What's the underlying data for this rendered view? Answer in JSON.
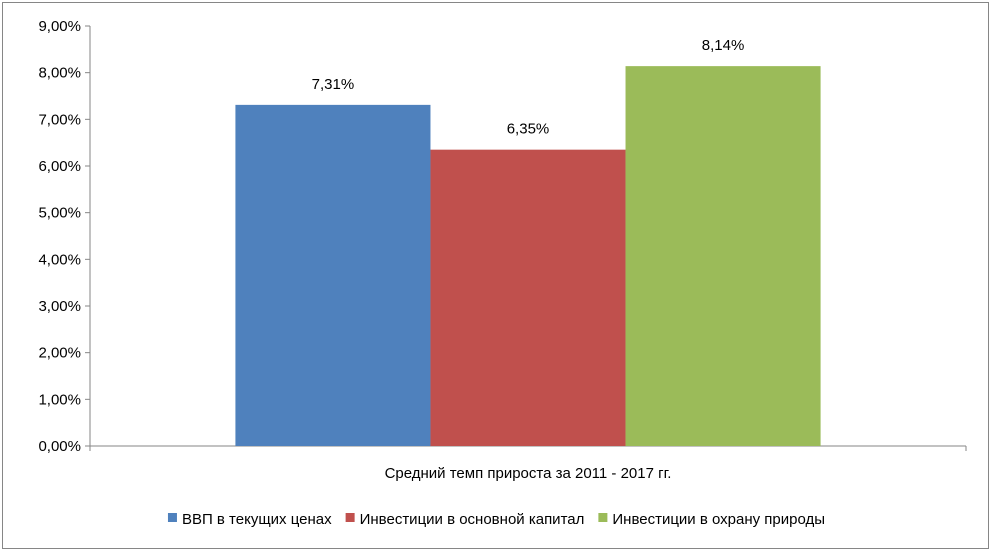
{
  "chart_data": {
    "type": "bar",
    "categories": [
      "Средний темп прироста за 2011 - 2017 гг."
    ],
    "series": [
      {
        "name": "ВВП в текущих ценах",
        "values": [
          7.31
        ],
        "label": "7,31%",
        "color": "#4F81BD"
      },
      {
        "name": "Инвестиции в основной капитал",
        "values": [
          6.35
        ],
        "label": "6,35%",
        "color": "#C0504D"
      },
      {
        "name": "Инвестиции в охрану природы",
        "values": [
          8.14
        ],
        "label": "8,14%",
        "color": "#9BBB59"
      }
    ],
    "ylim": [
      0,
      9
    ],
    "yticks": [
      {
        "value": 0,
        "label": "0,00%"
      },
      {
        "value": 1,
        "label": "1,00%"
      },
      {
        "value": 2,
        "label": "2,00%"
      },
      {
        "value": 3,
        "label": "3,00%"
      },
      {
        "value": 4,
        "label": "4,00%"
      },
      {
        "value": 5,
        "label": "5,00%"
      },
      {
        "value": 6,
        "label": "6,00%"
      },
      {
        "value": 7,
        "label": "7,00%"
      },
      {
        "value": 8,
        "label": "8,00%"
      },
      {
        "value": 9,
        "label": "9,00%"
      }
    ],
    "grid": false,
    "legend": "bottom"
  }
}
